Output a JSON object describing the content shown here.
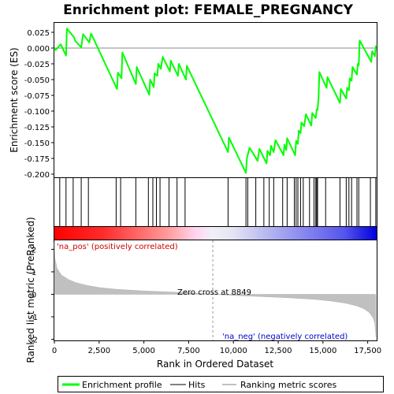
{
  "chart_data": {
    "type": "line",
    "title": "Enrichment plot: FEMALE_PREGNANCY",
    "panels": {
      "enrichment": {
        "ylabel": "Enrichment score (ES)",
        "ylim": [
          -0.205,
          0.04
        ],
        "yticks": [
          -0.2,
          -0.175,
          -0.15,
          -0.125,
          -0.1,
          -0.075,
          -0.05,
          -0.025,
          0.0,
          0.025
        ],
        "ytick_labels": [
          "-0.200",
          "-0.175",
          "-0.150",
          "-0.125",
          "-0.100",
          "-0.075",
          "-0.050",
          "-0.025",
          "0.000",
          "0.025"
        ],
        "series_color": "#00ff00",
        "points": [
          [
            0,
            0.0
          ],
          [
            70,
            -0.003
          ],
          [
            350,
            0.006
          ],
          [
            650,
            -0.012
          ],
          [
            700,
            0.031
          ],
          [
            1100,
            0.017
          ],
          [
            1150,
            0.012
          ],
          [
            1500,
            0.001
          ],
          [
            1600,
            0.022
          ],
          [
            1950,
            0.009
          ],
          [
            2050,
            0.023
          ],
          [
            3500,
            -0.065
          ],
          [
            3550,
            -0.039
          ],
          [
            3750,
            -0.048
          ],
          [
            3800,
            -0.007
          ],
          [
            4550,
            -0.057
          ],
          [
            4600,
            -0.03
          ],
          [
            5300,
            -0.074
          ],
          [
            5350,
            -0.05
          ],
          [
            5550,
            -0.062
          ],
          [
            5600,
            -0.04
          ],
          [
            5750,
            -0.044
          ],
          [
            5800,
            -0.025
          ],
          [
            5950,
            -0.033
          ],
          [
            6050,
            -0.014
          ],
          [
            6450,
            -0.037
          ],
          [
            6500,
            -0.02
          ],
          [
            6900,
            -0.044
          ],
          [
            6950,
            -0.025
          ],
          [
            7350,
            -0.05
          ],
          [
            7400,
            -0.028
          ],
          [
            9700,
            -0.165
          ],
          [
            9750,
            -0.142
          ],
          [
            10700,
            -0.198
          ],
          [
            10750,
            -0.175
          ],
          [
            10900,
            -0.158
          ],
          [
            11350,
            -0.179
          ],
          [
            11450,
            -0.16
          ],
          [
            11850,
            -0.183
          ],
          [
            11900,
            -0.163
          ],
          [
            12050,
            -0.17
          ],
          [
            12100,
            -0.155
          ],
          [
            12250,
            -0.165
          ],
          [
            12350,
            -0.146
          ],
          [
            12800,
            -0.17
          ],
          [
            12850,
            -0.153
          ],
          [
            12950,
            -0.162
          ],
          [
            13000,
            -0.143
          ],
          [
            13450,
            -0.17
          ],
          [
            13500,
            -0.147
          ],
          [
            13600,
            -0.152
          ],
          [
            13650,
            -0.131
          ],
          [
            13750,
            -0.135
          ],
          [
            13800,
            -0.118
          ],
          [
            13950,
            -0.124
          ],
          [
            14050,
            -0.105
          ],
          [
            14350,
            -0.123
          ],
          [
            14400,
            -0.103
          ],
          [
            14600,
            -0.111
          ],
          [
            14650,
            -0.097
          ],
          [
            14700,
            -0.098
          ],
          [
            14750,
            -0.08
          ],
          [
            14800,
            -0.038
          ],
          [
            15200,
            -0.063
          ],
          [
            15250,
            -0.046
          ],
          [
            15950,
            -0.087
          ],
          [
            16000,
            -0.065
          ],
          [
            16300,
            -0.08
          ],
          [
            16350,
            -0.063
          ],
          [
            16450,
            -0.067
          ],
          [
            16500,
            -0.048
          ],
          [
            16600,
            -0.052
          ],
          [
            16650,
            -0.03
          ],
          [
            16900,
            -0.042
          ],
          [
            16950,
            -0.025
          ],
          [
            17000,
            -0.027
          ],
          [
            17050,
            0.012
          ],
          [
            17700,
            -0.022
          ],
          [
            17750,
            -0.005
          ],
          [
            17900,
            -0.013
          ],
          [
            17950,
            0.003
          ],
          [
            18000,
            0.002
          ]
        ]
      },
      "hits": {
        "positions": [
          300,
          650,
          1050,
          1500,
          1900,
          3450,
          3700,
          4550,
          5250,
          5500,
          5700,
          5900,
          6400,
          6850,
          7300,
          9700,
          10700,
          10800,
          11250,
          11700,
          12000,
          12250,
          12750,
          13000,
          13400,
          13500,
          13600,
          13750,
          13900,
          14250,
          14500,
          14600,
          14650,
          14700,
          15150,
          15950,
          16300,
          16450,
          16600,
          16900,
          17000,
          17650,
          17950
        ]
      },
      "ranked_metric": {
        "ylabel": "Ranked list metric (PreRanked)",
        "xlabel": "Rank in Ordered Dataset",
        "ylim": [
          -2.05,
          2.4
        ],
        "yticks": [
          -2,
          -1,
          0,
          1,
          2
        ],
        "ytick_labels": [
          "-2",
          "-1",
          "0",
          "1",
          "2"
        ],
        "xlim": [
          0,
          18000
        ],
        "xticks": [
          0,
          2500,
          5000,
          7500,
          10000,
          12500,
          15000,
          17500
        ],
        "xtick_labels": [
          "0",
          "2,500",
          "5,000",
          "7,500",
          "10,000",
          "12,500",
          "15,000",
          "17,500"
        ],
        "points": [
          [
            0,
            2.3
          ],
          [
            30,
            1.6
          ],
          [
            150,
            1.15
          ],
          [
            400,
            0.85
          ],
          [
            800,
            0.65
          ],
          [
            1200,
            0.52
          ],
          [
            1800,
            0.4
          ],
          [
            2500,
            0.3
          ],
          [
            3500,
            0.22
          ],
          [
            5000,
            0.15
          ],
          [
            6500,
            0.1
          ],
          [
            8000,
            0.05
          ],
          [
            8849,
            0.0
          ],
          [
            10000,
            -0.05
          ],
          [
            11500,
            -0.1
          ],
          [
            13000,
            -0.15
          ],
          [
            14500,
            -0.22
          ],
          [
            15500,
            -0.3
          ],
          [
            16300,
            -0.4
          ],
          [
            16900,
            -0.52
          ],
          [
            17300,
            -0.65
          ],
          [
            17600,
            -0.82
          ],
          [
            17800,
            -1.05
          ],
          [
            17900,
            -1.3
          ],
          [
            17950,
            -1.9
          ]
        ],
        "zero_cross": 8849,
        "zero_cross_label": "Zero cross at 8849",
        "pos_label": "'na_pos' (positively correlated)",
        "neg_label": "'na_neg' (negatively correlated)"
      }
    },
    "legend": {
      "placement": "bottom",
      "entries": [
        {
          "label": "Enrichment profile",
          "color": "#00ff00"
        },
        {
          "label": "Hits",
          "color": "#000000"
        },
        {
          "label": "Ranking metric scores",
          "color": "#c0c0c0"
        }
      ]
    }
  }
}
